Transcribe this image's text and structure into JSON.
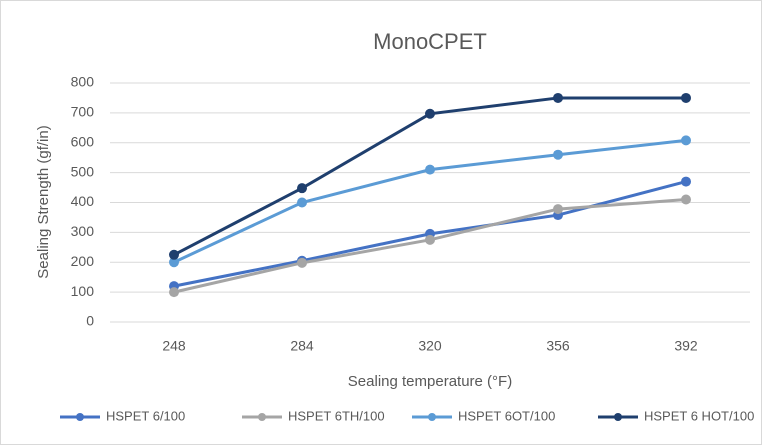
{
  "chart_data": {
    "type": "line",
    "title": "MonoCPET",
    "x_label": "Sealing temperature (°F)",
    "y_label": "Sealing Strength (gf/in)",
    "categories": [
      "248",
      "284",
      "320",
      "356",
      "392"
    ],
    "series": [
      {
        "name": "HSPET 6/100",
        "color": "#4472c4",
        "values": [
          120,
          205,
          295,
          358,
          470
        ]
      },
      {
        "name": "HSPET 6TH/100",
        "color": "#a5a5a5",
        "values": [
          100,
          198,
          275,
          378,
          410
        ]
      },
      {
        "name": "HSPET 6OT/100",
        "color": "#5b9bd5",
        "values": [
          200,
          400,
          510,
          560,
          608
        ]
      },
      {
        "name": "HSPET 6 HOT/100",
        "color": "#1f3f6e",
        "values": [
          225,
          448,
          697,
          750,
          750
        ]
      }
    ],
    "ylim": [
      0,
      800
    ],
    "yticks": [
      0,
      100,
      200,
      300,
      400,
      500,
      600,
      700,
      800
    ],
    "grid": true
  }
}
